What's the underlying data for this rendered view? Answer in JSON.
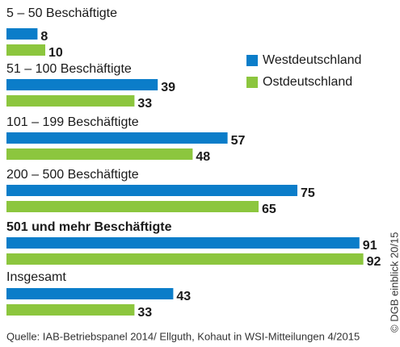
{
  "chart_data": {
    "type": "bar",
    "orientation": "horizontal",
    "categories": [
      "5 – 50 Beschäftigte",
      "51 – 100 Beschäftigte",
      "101 – 199 Beschäftigte",
      "200 – 500 Beschäftigte",
      "501 und mehr Beschäftigte",
      "Insgesamt"
    ],
    "highlight_index": 4,
    "series": [
      {
        "name": "Westdeutschland",
        "color": "#0b7dc9",
        "values": [
          8,
          39,
          57,
          75,
          91,
          43
        ]
      },
      {
        "name": "Ostdeutschland",
        "color": "#8cc63e",
        "values": [
          10,
          33,
          48,
          65,
          92,
          33
        ]
      }
    ],
    "legend": "top-right",
    "source": "Quelle: IAB-Betriebspanel 2014/ Ellguth, Kohaut in WSI-Mitteilungen 4/2015",
    "credit": "© DGB einblick 20/15"
  }
}
